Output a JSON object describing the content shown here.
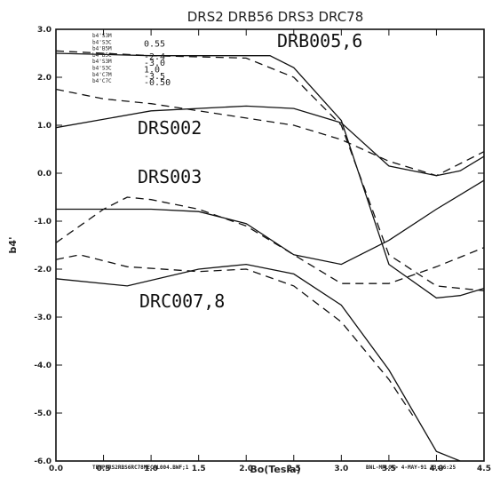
{
  "chart_data": {
    "type": "line",
    "title": "DRS2 DRB56 DRS3 DRC78",
    "xlabel": "Bo(Tesla)",
    "ylabel": "b4'",
    "xlim": [
      0.0,
      4.5
    ],
    "ylim": [
      -6.0,
      3.0
    ],
    "x_ticks": [
      "0.0",
      "0.5",
      "1.0",
      "1.5",
      "2.0",
      "2.5",
      "3.0",
      "3.5",
      "4.0",
      "4.5"
    ],
    "y_ticks": [
      "3.0",
      "2.0",
      "1.0",
      "0.0",
      "-1.0",
      "-2.0",
      "-3.0",
      "-4.0",
      "-5.0",
      "-6.0"
    ],
    "legend": [
      {
        "key": "b4'S3M",
        "value": ""
      },
      {
        "key": "b4'S3C",
        "value": "0.55"
      },
      {
        "key": "b4'B5M",
        "value": ""
      },
      {
        "key": "b4'B5C",
        "value": "-2.4"
      },
      {
        "key": "b4'S3M",
        "value": "-3.0"
      },
      {
        "key": "b4'S3C",
        "value": "1.0"
      },
      {
        "key": "b4'C7M",
        "value": "-3.5"
      },
      {
        "key": "b4'C7C",
        "value": "-0.50"
      }
    ],
    "series": [
      {
        "name": "DRB005,6",
        "style": "solid",
        "x": [
          0.0,
          1.0,
          2.0,
          2.25,
          2.5,
          3.0,
          3.5,
          4.0,
          4.25,
          4.5
        ],
        "y": [
          2.5,
          2.45,
          2.45,
          2.45,
          2.2,
          1.1,
          -1.9,
          -2.6,
          -2.55,
          -2.4
        ]
      },
      {
        "name": "DRB005,6",
        "style": "dashed",
        "x": [
          0.0,
          1.0,
          2.0,
          2.5,
          3.0,
          3.5,
          4.0,
          4.5
        ],
        "y": [
          2.55,
          2.45,
          2.4,
          2.0,
          1.0,
          -1.7,
          -2.35,
          -2.45
        ]
      },
      {
        "name": "DRS002",
        "style": "solid",
        "x": [
          0.0,
          1.0,
          2.0,
          2.5,
          3.0,
          3.5,
          4.0,
          4.25,
          4.5
        ],
        "y": [
          0.95,
          1.3,
          1.4,
          1.35,
          1.05,
          0.15,
          -0.05,
          0.05,
          0.35
        ]
      },
      {
        "name": "DRS002",
        "style": "dashed",
        "x": [
          0.0,
          0.5,
          1.0,
          1.5,
          2.0,
          2.5,
          3.0,
          3.5,
          4.0,
          4.5
        ],
        "y": [
          1.75,
          1.55,
          1.45,
          1.3,
          1.15,
          1.0,
          0.7,
          0.25,
          -0.05,
          0.45
        ]
      },
      {
        "name": "DRS003",
        "style": "solid",
        "x": [
          0.0,
          1.0,
          1.5,
          2.0,
          2.5,
          3.0,
          3.5,
          4.0,
          4.5
        ],
        "y": [
          -0.75,
          -0.75,
          -0.8,
          -1.05,
          -1.7,
          -1.9,
          -1.4,
          -0.75,
          -0.15
        ]
      },
      {
        "name": "DRS003",
        "style": "dashed",
        "x": [
          0.0,
          0.5,
          0.75,
          1.0,
          1.5,
          2.0,
          2.5,
          3.0,
          3.5,
          4.0,
          4.5
        ],
        "y": [
          -1.45,
          -0.75,
          -0.5,
          -0.55,
          -0.75,
          -1.1,
          -1.7,
          -2.3,
          -2.3,
          -1.95,
          -1.55
        ]
      },
      {
        "name": "DRC007,8",
        "style": "solid",
        "x": [
          0.0,
          0.75,
          1.5,
          2.0,
          2.5,
          3.0,
          3.5,
          4.0,
          4.25
        ],
        "y": [
          -2.2,
          -2.35,
          -2.0,
          -1.9,
          -2.1,
          -2.75,
          -4.1,
          -5.8,
          -6.0
        ]
      },
      {
        "name": "DRC007,8",
        "style": "dashed",
        "x": [
          0.0,
          0.25,
          0.75,
          1.5,
          2.0,
          2.5,
          3.0,
          3.5,
          3.75
        ],
        "y": [
          -1.8,
          -1.7,
          -1.95,
          -2.05,
          -2.0,
          -2.35,
          -3.1,
          -4.3,
          -5.05
        ]
      }
    ],
    "labels": {
      "drb": "DRB005,6",
      "drs002": "DRS002",
      "drs003": "DRS003",
      "drc": "DRC007,8"
    },
    "footer_left": "TEMPSRS2RBS6RC78MECAL004.BWF;1",
    "footer_right": "BNL-MPLOT> 4-MAY-91 23:26:25"
  }
}
